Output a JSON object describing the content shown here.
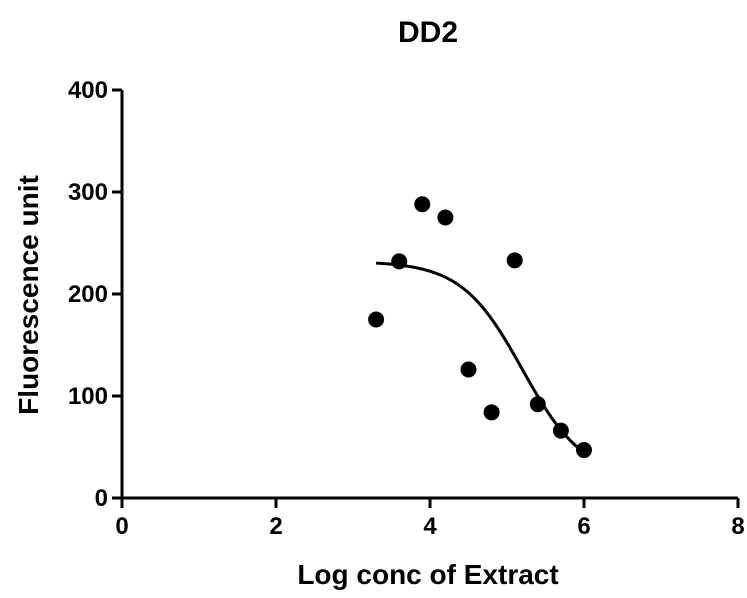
{
  "chart_data": {
    "type": "scatter",
    "title": "DD2",
    "xlabel": "Log conc of Extract",
    "ylabel": "Fluorescence unit",
    "xlim": [
      0,
      8
    ],
    "ylim": [
      0,
      400
    ],
    "x_ticks": [
      "0",
      "2",
      "4",
      "6",
      "8"
    ],
    "y_ticks": [
      "0",
      "100",
      "200",
      "300",
      "400"
    ],
    "grid": false,
    "legend": "none",
    "colors": {
      "axis": "#000000",
      "points": "#000000",
      "fit": "#000000"
    },
    "points": [
      {
        "x": 3.3,
        "y": 175
      },
      {
        "x": 3.6,
        "y": 232
      },
      {
        "x": 3.9,
        "y": 288
      },
      {
        "x": 4.2,
        "y": 275
      },
      {
        "x": 4.5,
        "y": 126
      },
      {
        "x": 4.8,
        "y": 84
      },
      {
        "x": 5.1,
        "y": 233
      },
      {
        "x": 5.4,
        "y": 92
      },
      {
        "x": 5.7,
        "y": 66
      },
      {
        "x": 6.0,
        "y": 47
      }
    ],
    "fit_curve": {
      "model": "sigmoidal dose-response",
      "top": 232,
      "bottom": 20,
      "log_ec50": 5.2,
      "x_range": [
        3.3,
        6.0
      ]
    }
  }
}
